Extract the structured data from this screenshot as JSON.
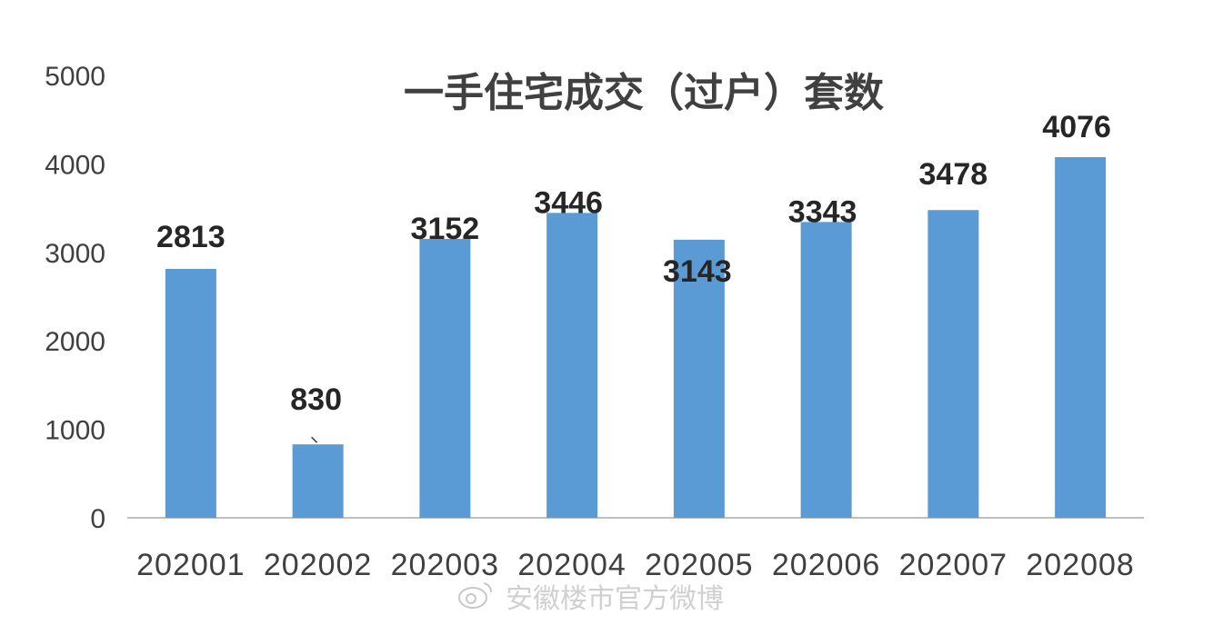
{
  "chart_data": {
    "type": "bar",
    "title": "一手住宅成交（过户）套数",
    "categories": [
      "202001",
      "202002",
      "202003",
      "202004",
      "202005",
      "202006",
      "202007",
      "202008"
    ],
    "values": [
      2813,
      830,
      3152,
      3446,
      3143,
      3343,
      3478,
      4076
    ],
    "ylim": [
      0,
      5000
    ],
    "yticks": [
      0,
      1000,
      2000,
      3000,
      4000,
      5000
    ],
    "xlabel": "",
    "ylabel": "",
    "grid": false,
    "legend": "none",
    "bar_color": "#5b9bd5"
  },
  "watermark": {
    "text": "安徽楼市官方微博",
    "icon": "weibo-icon"
  }
}
